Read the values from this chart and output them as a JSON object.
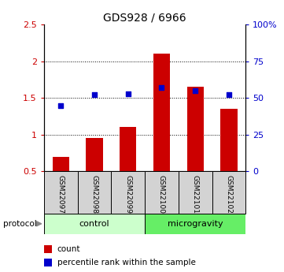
{
  "title": "GDS928 / 6966",
  "categories": [
    "GSM22097",
    "GSM22098",
    "GSM22099",
    "GSM22100",
    "GSM22101",
    "GSM22102"
  ],
  "bar_values": [
    0.7,
    0.95,
    1.1,
    2.1,
    1.65,
    1.35
  ],
  "scatter_values": [
    45,
    52,
    53,
    57,
    55,
    52
  ],
  "bar_color": "#cc0000",
  "scatter_color": "#0000cc",
  "ylim_left": [
    0.5,
    2.5
  ],
  "ylim_right": [
    0,
    100
  ],
  "yticks_left": [
    0.5,
    1.0,
    1.5,
    2.0,
    2.5
  ],
  "ytick_labels_left": [
    "0.5",
    "1",
    "1.5",
    "2",
    "2.5"
  ],
  "yticks_right": [
    0,
    25,
    50,
    75,
    100
  ],
  "ytick_labels_right": [
    "0",
    "25",
    "50",
    "75",
    "100%"
  ],
  "ctrl_color": "#ccffcc",
  "micro_color": "#66ee66",
  "label_bg_color": "#d3d3d3",
  "left_axis_color": "#cc0000",
  "right_axis_color": "#0000cc",
  "legend_count_label": "count",
  "legend_pct_label": "percentile rank within the sample",
  "bar_bottom": 0.5,
  "dotted_yticks": [
    1.0,
    1.5,
    2.0
  ]
}
